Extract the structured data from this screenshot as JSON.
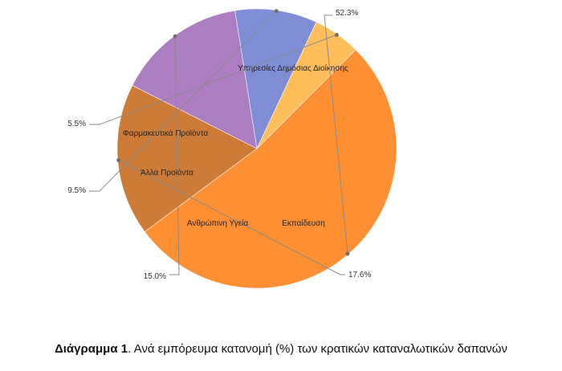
{
  "chart_data": {
    "type": "pie",
    "slices": [
      {
        "label": "Υπηρεσίες Δημόσιας Διοίκησης",
        "value": 52.3,
        "value_label": "52.3%",
        "color": "#FF8F33"
      },
      {
        "label": "Εκπαίδευση",
        "value": 17.6,
        "value_label": "17.6%",
        "color": "#CD7B36"
      },
      {
        "label": "Ανθρώπινη Υγεία",
        "value": 15.0,
        "value_label": "15.0%",
        "color": "#AC7DC0"
      },
      {
        "label": "Άλλα Προϊόντα",
        "value": 9.5,
        "value_label": "9.5%",
        "color": "#7F8CD6"
      },
      {
        "label": "Φαρμακευτικά Προϊόντα",
        "value": 5.5,
        "value_label": "5.5%",
        "color": "#FFBE5A"
      }
    ]
  },
  "caption": {
    "prefix": "Διάγραμμα 1",
    "text": ". Ανά εμπόρευμα κατανομή (%) των κρατικών καταναλωτικών δαπανών"
  }
}
